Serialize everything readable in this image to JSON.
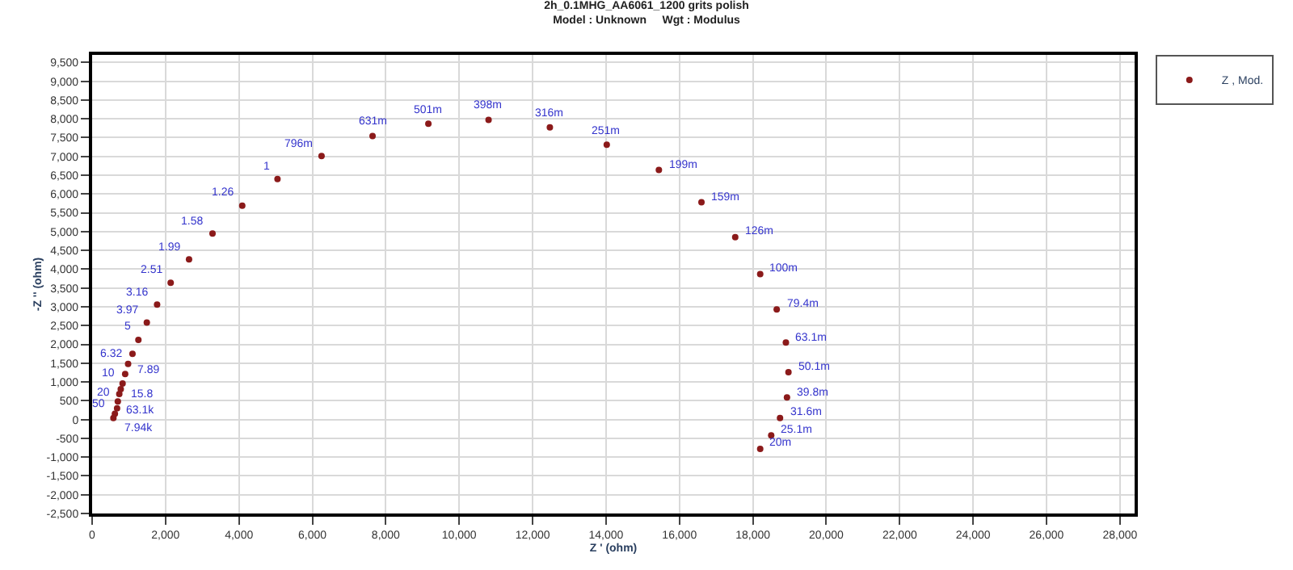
{
  "chart_data": {
    "type": "scatter",
    "title": "2h_0.1MHG_AA6061_1200 grits polish",
    "subtitle": "Model : Unknown     Wgt : Modulus",
    "xlabel": "Z ' (ohm)",
    "ylabel": "-Z '' (ohm)",
    "x": [
      18200,
      18500,
      18740,
      18930,
      18970,
      18900,
      18650,
      18200,
      17520,
      16600,
      15440,
      14020,
      12470,
      10800,
      9160,
      7640,
      6250,
      5050,
      4090,
      3280,
      2640,
      2140,
      1770,
      1490,
      1260,
      1100,
      980,
      900,
      830,
      780,
      740,
      700,
      680,
      620,
      580
    ],
    "series": [
      {
        "name": "Z , Mod.",
        "color": "#8b1a1a",
        "values": [
          -780,
          -420,
          40,
          590,
          1260,
          2050,
          2930,
          3870,
          4850,
          5780,
          6640,
          7310,
          7770,
          7970,
          7870,
          7540,
          7010,
          6400,
          5690,
          4950,
          4260,
          3640,
          3060,
          2580,
          2120,
          1750,
          1480,
          1210,
          960,
          810,
          680,
          480,
          300,
          150,
          40
        ]
      }
    ],
    "annotations": [
      {
        "text": "20m",
        "x": 18200,
        "y": -780
      },
      {
        "text": "25.1m",
        "x": 18500,
        "y": -420
      },
      {
        "text": "31.6m",
        "x": 18740,
        "y": 40
      },
      {
        "text": "39.8m",
        "x": 18930,
        "y": 590
      },
      {
        "text": "50.1m",
        "x": 18970,
        "y": 1260
      },
      {
        "text": "63.1m",
        "x": 18900,
        "y": 2050
      },
      {
        "text": "79.4m",
        "x": 18650,
        "y": 2930
      },
      {
        "text": "100m",
        "x": 18200,
        "y": 3870
      },
      {
        "text": "126m",
        "x": 17520,
        "y": 4850
      },
      {
        "text": "159m",
        "x": 16600,
        "y": 5780
      },
      {
        "text": "199m",
        "x": 15440,
        "y": 6640
      },
      {
        "text": "251m",
        "x": 14020,
        "y": 7310
      },
      {
        "text": "316m",
        "x": 12470,
        "y": 7770
      },
      {
        "text": "398m",
        "x": 10800,
        "y": 7970
      },
      {
        "text": "501m",
        "x": 9160,
        "y": 7870
      },
      {
        "text": "631m",
        "x": 7640,
        "y": 7540
      },
      {
        "text": "796m",
        "x": 6250,
        "y": 7010
      },
      {
        "text": "1",
        "x": 5050,
        "y": 6400
      },
      {
        "text": "1.26",
        "x": 4090,
        "y": 5690
      },
      {
        "text": "1.58",
        "x": 3280,
        "y": 4950
      },
      {
        "text": "1.99",
        "x": 2640,
        "y": 4260
      },
      {
        "text": "2.51",
        "x": 2140,
        "y": 3640
      },
      {
        "text": "3.16",
        "x": 1770,
        "y": 3060
      },
      {
        "text": "3.97",
        "x": 1490,
        "y": 2580
      },
      {
        "text": "5",
        "x": 1260,
        "y": 2120
      },
      {
        "text": "6.32",
        "x": 1100,
        "y": 1750
      },
      {
        "text": "7.89",
        "x": 980,
        "y": 1480
      },
      {
        "text": "10",
        "x": 900,
        "y": 1210
      },
      {
        "text": "15.8",
        "x": 780,
        "y": 810
      },
      {
        "text": "20",
        "x": 740,
        "y": 680
      },
      {
        "text": "50",
        "x": 680,
        "y": 300
      },
      {
        "text": "63.1k",
        "x": 620,
        "y": 150
      },
      {
        "text": "7.94k",
        "x": 580,
        "y": 40
      }
    ],
    "marker": "circle",
    "grid": true,
    "legend": "top right",
    "xlim": [
      0,
      28400
    ],
    "ylim": [
      -2500,
      9700
    ],
    "xticks": [
      0,
      {
        "value": 2000,
        "label": "2,000"
      },
      {
        "value": 4000,
        "label": "4,000"
      },
      {
        "value": 6000,
        "label": "6,000"
      },
      {
        "value": 8000,
        "label": "8,000"
      },
      {
        "value": 10000,
        "label": "10,000"
      },
      {
        "value": 12000,
        "label": "12,000"
      },
      {
        "value": 14000,
        "label": "14,000"
      },
      {
        "value": 16000,
        "label": "16,000"
      },
      {
        "value": 18000,
        "label": "18,000"
      },
      {
        "value": 20000,
        "label": "20,000"
      },
      {
        "value": 22000,
        "label": "22,000"
      },
      {
        "value": 24000,
        "label": "24,000"
      },
      {
        "value": 26000,
        "label": "26,000"
      },
      {
        "value": 28000,
        "label": "28,000"
      }
    ],
    "yticks": [
      {
        "value": -2500,
        "label": "-2,500"
      },
      {
        "value": -2000,
        "label": "-2,000"
      },
      {
        "value": -1500,
        "label": "-1,500"
      },
      {
        "value": -1000,
        "label": "-1,000"
      },
      -500,
      0,
      500,
      {
        "value": 1000,
        "label": "1,000"
      },
      {
        "value": 1500,
        "label": "1,500"
      },
      {
        "value": 2000,
        "label": "2,000"
      },
      {
        "value": 2500,
        "label": "2,500"
      },
      {
        "value": 3000,
        "label": "3,000"
      },
      {
        "value": 3500,
        "label": "3,500"
      },
      {
        "value": 4000,
        "label": "4,000"
      },
      {
        "value": 4500,
        "label": "4,500"
      },
      {
        "value": 5000,
        "label": "5,000"
      },
      {
        "value": 5500,
        "label": "5,500"
      },
      {
        "value": 6000,
        "label": "6,000"
      },
      {
        "value": 6500,
        "label": "6,500"
      },
      {
        "value": 7000,
        "label": "7,000"
      },
      {
        "value": 7500,
        "label": "7,500"
      },
      {
        "value": 8000,
        "label": "8,000"
      },
      {
        "value": 8500,
        "label": "8,500"
      },
      {
        "value": 9000,
        "label": "9,000"
      },
      {
        "value": 9500,
        "label": "9,500"
      }
    ]
  }
}
